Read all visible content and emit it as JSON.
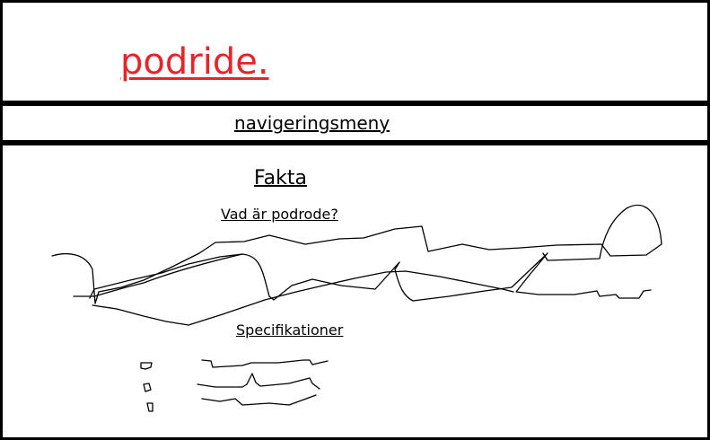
{
  "header": {
    "logo": "podride.",
    "logo_color": "#e8242b"
  },
  "nav": {
    "label": "navigeringsmeny"
  },
  "main": {
    "heading": "Fakta",
    "subheading": "Vad är podrode?",
    "spec_heading": "Specifikationer"
  },
  "colors": {
    "border": "#000000",
    "background": "#ffffff",
    "text": "#000000"
  }
}
